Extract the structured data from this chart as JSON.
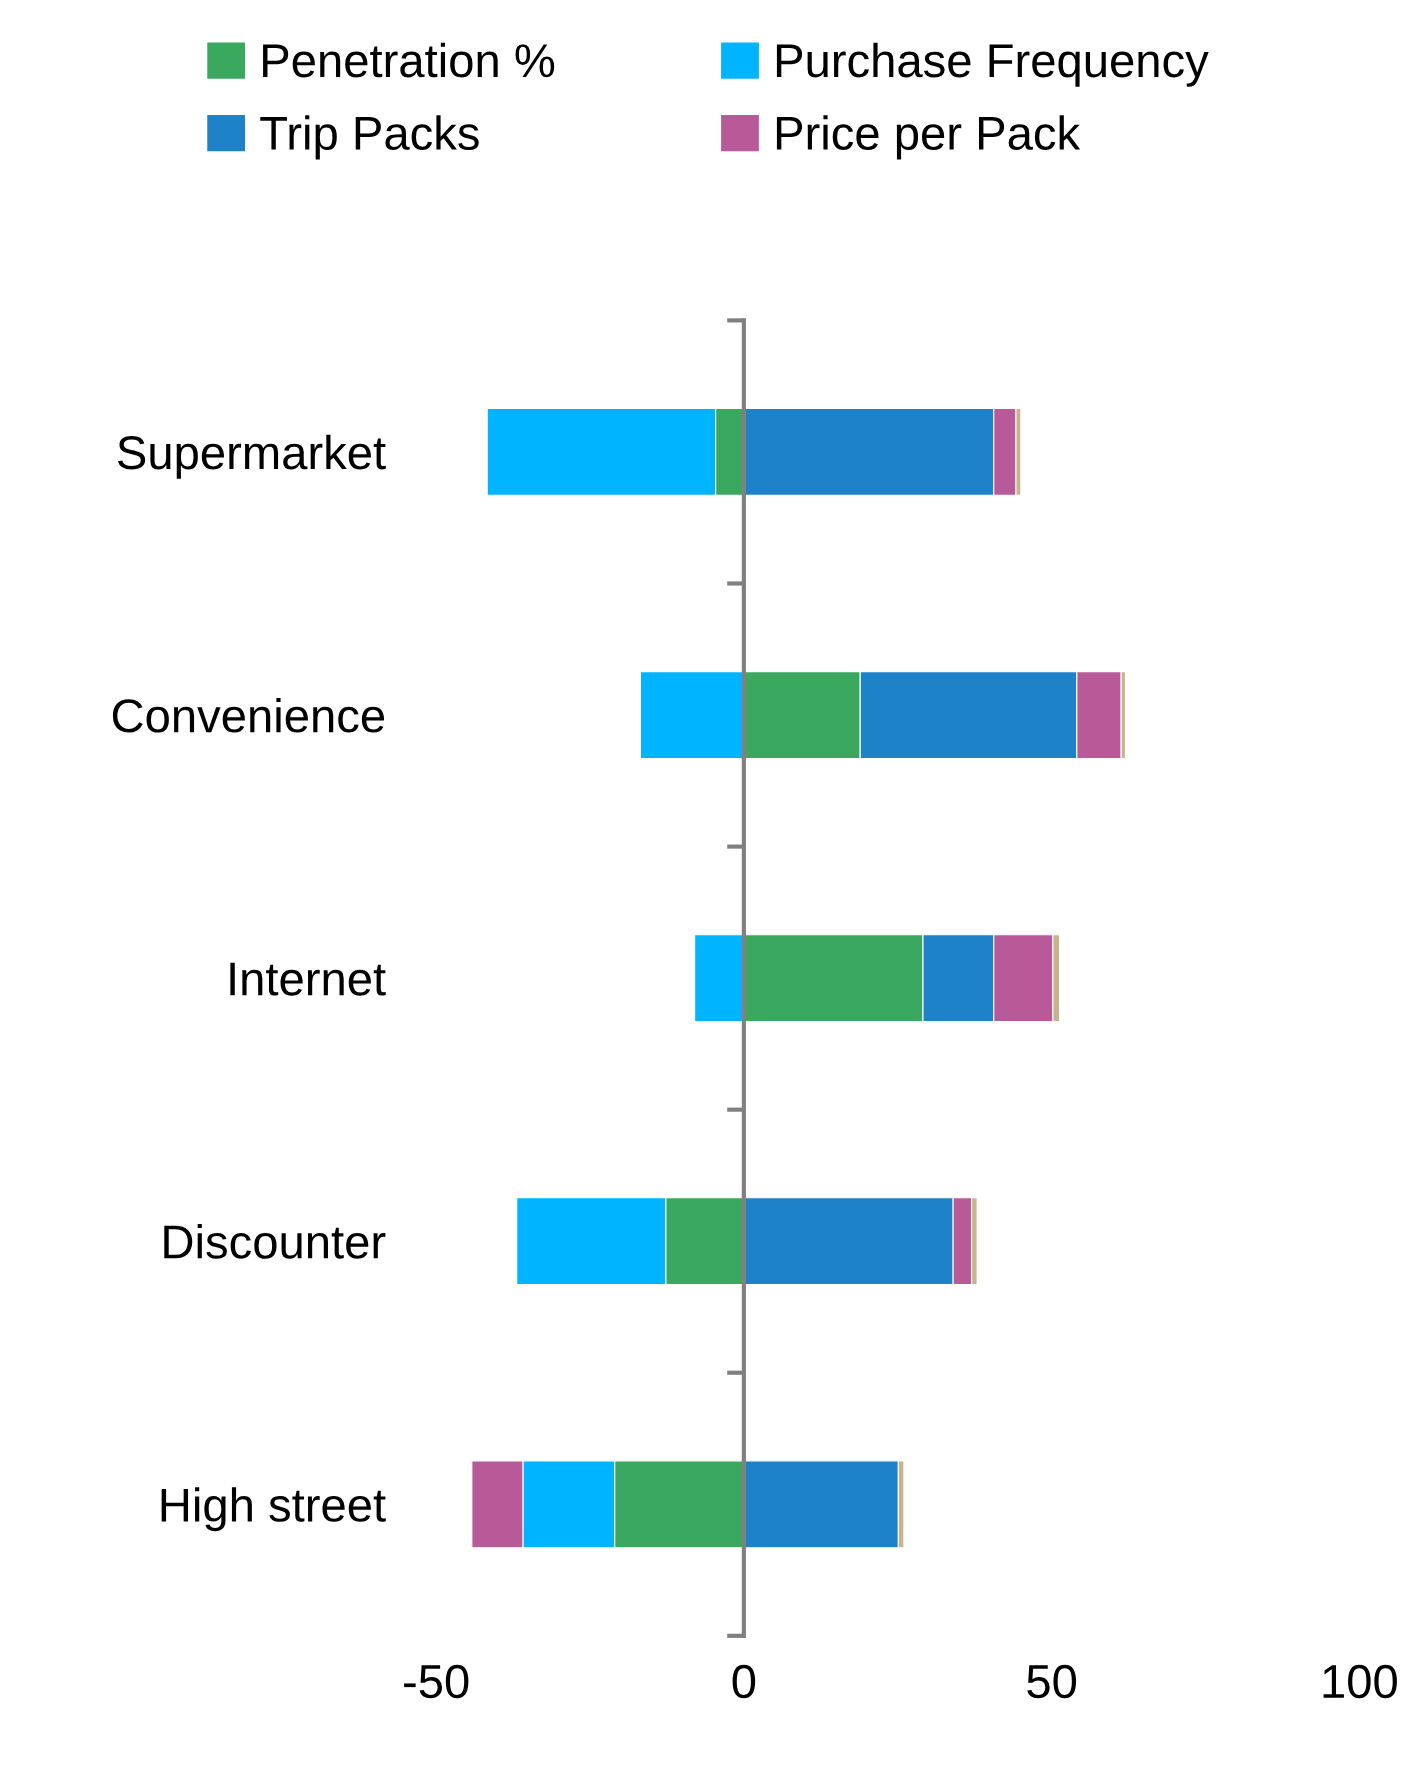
{
  "chart_data": {
    "type": "bar",
    "orientation": "horizontal",
    "stacked": true,
    "categories": [
      "Supermarket",
      "Convenience",
      "Internet",
      "Discounter",
      "High street"
    ],
    "series": [
      {
        "name": "Penetration %",
        "color": "#3ba860",
        "values": [
          -4.6,
          18.9,
          29.1,
          -12.7,
          -21.0
        ]
      },
      {
        "name": "Purchase Frequency",
        "color": "#00b4ff",
        "values": [
          -37.1,
          -16.8,
          -8.0,
          -24.2,
          -14.9
        ]
      },
      {
        "name": "Trip Packs",
        "color": "#1e82c8",
        "values": [
          40.6,
          35.2,
          11.5,
          34.0,
          25.1
        ]
      },
      {
        "name": "Price per Pack",
        "color": "#b85a98",
        "values": [
          3.6,
          7.2,
          9.6,
          3.0,
          -8.3
        ]
      },
      {
        "color": "#c8b48c",
        "values": [
          0.8,
          0.7,
          1.1,
          0.9,
          0.9
        ]
      }
    ],
    "xlim": [
      -50,
      100
    ],
    "xticks": [
      -50,
      0,
      50,
      100
    ],
    "legend": "top"
  }
}
